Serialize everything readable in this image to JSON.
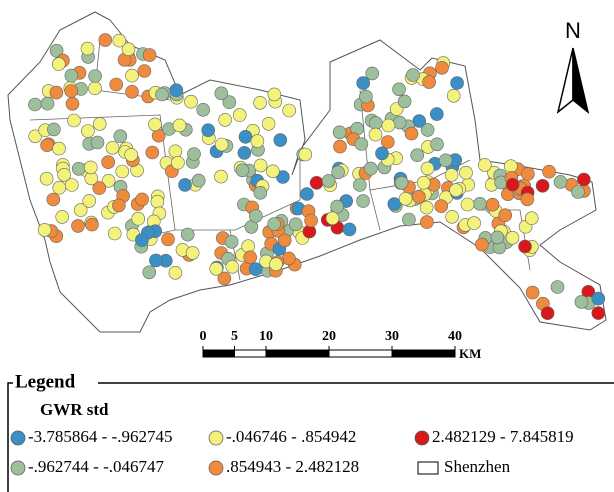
{
  "map": {
    "north_label": "N",
    "scale_bar": {
      "ticks": [
        0,
        5,
        10,
        20,
        30,
        40
      ],
      "unit": "KM"
    },
    "legend": {
      "title": "Legend",
      "field": "GWR std",
      "items": [
        {
          "label": "-3.785864 - -.962745",
          "color": "#3a8fc7"
        },
        {
          "label": "-.046746 - .854942",
          "color": "#f3f27a"
        },
        {
          "label": "2.482129 - 7.845819",
          "color": "#d7191c"
        },
        {
          "label": "-.962744 - -.046747",
          "color": "#9dbf9b"
        },
        {
          "label": ".854943 - 2.482128",
          "color": "#f08a3c"
        },
        {
          "label": "Shenzhen",
          "color": "#ffffff"
        }
      ]
    }
  }
}
